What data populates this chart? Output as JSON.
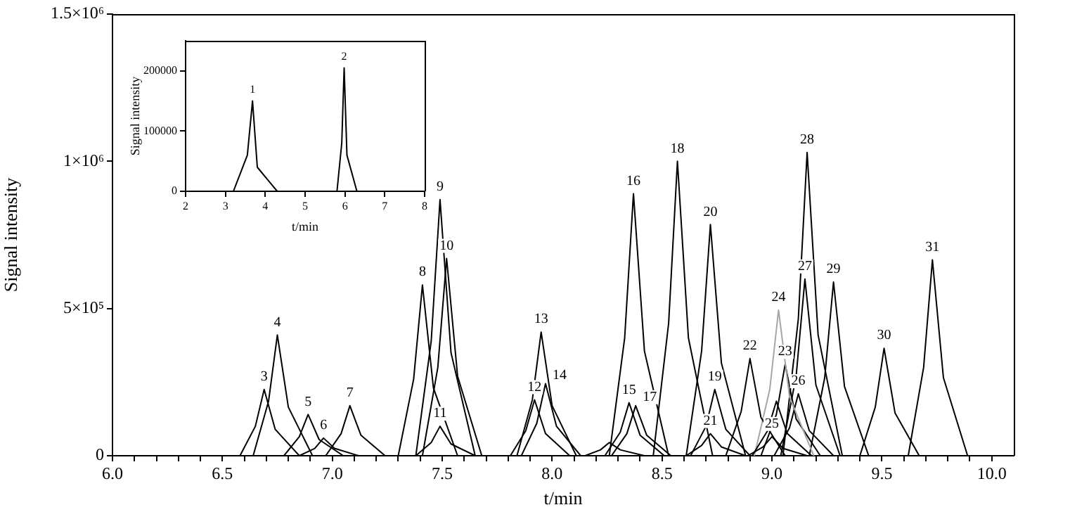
{
  "chart_data": [
    {
      "type": "line",
      "xlabel": "t/min",
      "ylabel": "Signal intensity",
      "xlim": [
        6.0,
        10.1
      ],
      "ylim": [
        0,
        1500000
      ],
      "xticks": [
        {
          "value": 6,
          "label": "6.0"
        },
        {
          "value": 6.1,
          "label": null
        },
        {
          "value": 6.2,
          "label": null
        },
        {
          "value": 6.3,
          "label": null
        },
        {
          "value": 6.4,
          "label": null
        },
        {
          "value": 6.5,
          "label": "6.5"
        },
        {
          "value": 6.6,
          "label": null
        },
        {
          "value": 6.7,
          "label": null
        },
        {
          "value": 6.8,
          "label": null
        },
        {
          "value": 6.9,
          "label": null
        },
        {
          "value": 7,
          "label": "7.0"
        },
        {
          "value": 7.1,
          "label": null
        },
        {
          "value": 7.2,
          "label": null
        },
        {
          "value": 7.3,
          "label": null
        },
        {
          "value": 7.4,
          "label": null
        },
        {
          "value": 7.5,
          "label": "7.5"
        },
        {
          "value": 7.6,
          "label": null
        },
        {
          "value": 7.7,
          "label": null
        },
        {
          "value": 7.8,
          "label": null
        },
        {
          "value": 7.9,
          "label": null
        },
        {
          "value": 8,
          "label": "8.0"
        },
        {
          "value": 8.1,
          "label": null
        },
        {
          "value": 8.2,
          "label": null
        },
        {
          "value": 8.3,
          "label": null
        },
        {
          "value": 8.4,
          "label": null
        },
        {
          "value": 8.5,
          "label": "8.5"
        },
        {
          "value": 8.6,
          "label": null
        },
        {
          "value": 8.7,
          "label": null
        },
        {
          "value": 8.8,
          "label": null
        },
        {
          "value": 8.9,
          "label": null
        },
        {
          "value": 9,
          "label": "9.0"
        },
        {
          "value": 9.1,
          "label": null
        },
        {
          "value": 9.2,
          "label": null
        },
        {
          "value": 9.3,
          "label": null
        },
        {
          "value": 9.4,
          "label": null
        },
        {
          "value": 9.5,
          "label": "9.5"
        },
        {
          "value": 9.6,
          "label": null
        },
        {
          "value": 9.7,
          "label": null
        },
        {
          "value": 9.8,
          "label": null
        },
        {
          "value": 9.9,
          "label": null
        },
        {
          "value": 10,
          "label": "10.0"
        }
      ],
      "yticks": [
        0,
        {
          "value": 500000,
          "label": "5×10⁵"
        },
        {
          "value": 1000000,
          "label": "1×10⁶"
        },
        {
          "value": 1500000,
          "label": "1.5×10⁶"
        }
      ],
      "grid": false,
      "legend": false,
      "marker": "none",
      "line_style": "solid",
      "series": [
        {
          "color": "#000000",
          "x": [
            6.58,
            6.65,
            6.69,
            6.74,
            6.85
          ],
          "values": [
            0,
            100000,
            225000,
            90000,
            0
          ]
        },
        {
          "color": "#000000",
          "x": [
            6.64,
            6.71,
            6.75,
            6.8,
            6.91
          ],
          "values": [
            0,
            185000,
            410000,
            165000,
            0
          ]
        },
        {
          "color": "#000000",
          "x": [
            6.78,
            6.85,
            6.89,
            6.94,
            7.05
          ],
          "values": [
            0,
            65000,
            140000,
            55000,
            0
          ]
        },
        {
          "color": "#000000",
          "x": [
            6.85,
            6.92,
            6.96,
            7.01,
            7.12
          ],
          "values": [
            0,
            25000,
            60000,
            25000,
            0
          ]
        },
        {
          "color": "#000000",
          "x": [
            6.97,
            7.04,
            7.08,
            7.13,
            7.24
          ],
          "values": [
            0,
            75000,
            170000,
            70000,
            0
          ]
        },
        {
          "color": "#000000",
          "x": [
            7.3,
            7.37,
            7.41,
            7.46,
            7.57
          ],
          "values": [
            0,
            260000,
            580000,
            230000,
            0
          ]
        },
        {
          "color": "#000000",
          "x": [
            7.38,
            7.45,
            7.49,
            7.54,
            7.65
          ],
          "values": [
            0,
            390000,
            870000,
            350000,
            0
          ]
        },
        {
          "color": "#000000",
          "x": [
            7.41,
            7.48,
            7.52,
            7.57,
            7.68
          ],
          "values": [
            0,
            300000,
            670000,
            270000,
            0
          ]
        },
        {
          "color": "#000000",
          "x": [
            7.38,
            7.45,
            7.49,
            7.54,
            7.65
          ],
          "values": [
            0,
            45000,
            100000,
            40000,
            0
          ]
        },
        {
          "color": "#000000",
          "x": [
            7.81,
            7.88,
            7.92,
            7.97,
            8.08
          ],
          "values": [
            0,
            85000,
            190000,
            75000,
            0
          ]
        },
        {
          "color": "#000000",
          "x": [
            7.84,
            7.91,
            7.95,
            8,
            8.11
          ],
          "values": [
            0,
            190000,
            420000,
            170000,
            0
          ]
        },
        {
          "color": "#000000",
          "x": [
            7.86,
            7.93,
            7.97,
            8.02,
            8.13
          ],
          "values": [
            0,
            110000,
            245000,
            100000,
            0
          ]
        },
        {
          "color": "#000000",
          "x": [
            8.15,
            8.22,
            8.26,
            8.31,
            8.42
          ],
          "values": [
            0,
            20000,
            45000,
            20000,
            0
          ]
        },
        {
          "color": "#000000",
          "x": [
            8.24,
            8.31,
            8.35,
            8.4,
            8.51
          ],
          "values": [
            0,
            80000,
            180000,
            70000,
            0
          ]
        },
        {
          "color": "#000000",
          "x": [
            8.26,
            8.33,
            8.37,
            8.42,
            8.53
          ],
          "values": [
            0,
            400000,
            890000,
            355000,
            0
          ]
        },
        {
          "color": "#000000",
          "x": [
            8.27,
            8.34,
            8.38,
            8.43,
            8.54
          ],
          "values": [
            0,
            75000,
            170000,
            70000,
            0
          ]
        },
        {
          "color": "#000000",
          "x": [
            8.46,
            8.53,
            8.57,
            8.62,
            8.73
          ],
          "values": [
            0,
            450000,
            1000000,
            400000,
            0
          ]
        },
        {
          "color": "#000000",
          "x": [
            8.61,
            8.68,
            8.72,
            8.77,
            8.88
          ],
          "values": [
            0,
            355000,
            785000,
            315000,
            0
          ]
        },
        {
          "color": "#000000",
          "x": [
            8.63,
            8.7,
            8.74,
            8.79,
            8.9
          ],
          "values": [
            0,
            100000,
            225000,
            90000,
            0
          ]
        },
        {
          "color": "#000000",
          "x": [
            8.61,
            8.68,
            8.72,
            8.77,
            8.88
          ],
          "values": [
            0,
            35000,
            75000,
            30000,
            0
          ]
        },
        {
          "color": "#000000",
          "x": [
            8.79,
            8.86,
            8.9,
            8.95,
            9.06
          ],
          "values": [
            0,
            150000,
            330000,
            130000,
            0
          ]
        },
        {
          "color": "#000000",
          "x": [
            8.89,
            8.96,
            9,
            9.05,
            9.16
          ],
          "values": [
            0,
            30000,
            65000,
            25000,
            0
          ]
        },
        {
          "color": "#000000",
          "x": [
            8.91,
            8.98,
            9.02,
            9.07,
            9.18
          ],
          "values": [
            0,
            85000,
            185000,
            75000,
            0
          ]
        },
        {
          "color": "#a6a6a6",
          "x": [
            8.92,
            8.99,
            9.03,
            9.08,
            9.19
          ],
          "values": [
            0,
            225000,
            495000,
            200000,
            0
          ]
        },
        {
          "color": "#000000",
          "x": [
            8.95,
            9.02,
            9.06,
            9.11,
            9.22
          ],
          "values": [
            0,
            140000,
            310000,
            125000,
            0
          ]
        },
        {
          "color": "#000000",
          "x": [
            9.01,
            9.08,
            9.12,
            9.17,
            9.28
          ],
          "values": [
            0,
            95000,
            210000,
            85000,
            0
          ]
        },
        {
          "color": "#000000",
          "x": [
            9.04,
            9.11,
            9.15,
            9.2,
            9.31
          ],
          "values": [
            0,
            270000,
            600000,
            240000,
            0
          ]
        },
        {
          "color": "#000000",
          "x": [
            9.05,
            9.12,
            9.16,
            9.21,
            9.32
          ],
          "values": [
            0,
            465000,
            1030000,
            410000,
            0
          ]
        },
        {
          "color": "#000000",
          "x": [
            9.17,
            9.24,
            9.28,
            9.33,
            9.44
          ],
          "values": [
            0,
            265000,
            590000,
            235000,
            0
          ]
        },
        {
          "color": "#000000",
          "x": [
            9.4,
            9.47,
            9.51,
            9.56,
            9.67
          ],
          "values": [
            0,
            165000,
            365000,
            145000,
            0
          ]
        },
        {
          "color": "#000000",
          "x": [
            9.62,
            9.69,
            9.73,
            9.78,
            9.89
          ],
          "values": [
            0,
            300000,
            665000,
            265000,
            0
          ]
        }
      ],
      "annotations": [
        {
          "text": "3",
          "x": 6.69,
          "y": 225000
        },
        {
          "text": "4",
          "x": 6.75,
          "y": 410000
        },
        {
          "text": "5",
          "x": 6.89,
          "y": 140000
        },
        {
          "text": "6",
          "x": 6.96,
          "y": 60000
        },
        {
          "text": "7",
          "x": 7.08,
          "y": 170000
        },
        {
          "text": "8",
          "x": 7.41,
          "y": 580000
        },
        {
          "text": "9",
          "x": 7.49,
          "y": 870000
        },
        {
          "text": "10",
          "x": 7.52,
          "y": 670000
        },
        {
          "text": "11",
          "x": 7.49,
          "y": 100000
        },
        {
          "text": "12",
          "x": 7.92,
          "y": 190000
        },
        {
          "text": "13",
          "x": 7.95,
          "y": 420000
        },
        {
          "text": "14",
          "x": 7.97,
          "y": 245000
        },
        {
          "text": "15",
          "x": 8.35,
          "y": 180000
        },
        {
          "text": "16",
          "x": 8.37,
          "y": 890000
        },
        {
          "text": "17",
          "x": 8.38,
          "y": 170000
        },
        {
          "text": "18",
          "x": 8.57,
          "y": 1000000
        },
        {
          "text": "19",
          "x": 8.74,
          "y": 225000
        },
        {
          "text": "20",
          "x": 8.72,
          "y": 785000
        },
        {
          "text": "21",
          "x": 8.72,
          "y": 75000
        },
        {
          "text": "22",
          "x": 8.9,
          "y": 330000
        },
        {
          "text": "23",
          "x": 9.06,
          "y": 310000
        },
        {
          "text": "24",
          "x": 9.03,
          "y": 495000
        },
        {
          "text": "25",
          "x": 9,
          "y": 65000
        },
        {
          "text": "26",
          "x": 9.12,
          "y": 210000
        },
        {
          "text": "27",
          "x": 9.15,
          "y": 600000
        },
        {
          "text": "28",
          "x": 9.16,
          "y": 1030000
        },
        {
          "text": "29",
          "x": 9.28,
          "y": 590000
        },
        {
          "text": "30",
          "x": 9.51,
          "y": 365000
        },
        {
          "text": "31",
          "x": 9.73,
          "y": 665000
        }
      ]
    },
    {
      "type": "line",
      "xlabel": "t/min",
      "ylabel": "Signal intensity",
      "xlim": [
        2,
        8
      ],
      "ylim": [
        0,
        250000
      ],
      "xticks": [
        2,
        3,
        4,
        5,
        6,
        7,
        8
      ],
      "yticks": [
        0,
        100000,
        200000
      ],
      "grid": false,
      "legend": false,
      "marker": "none",
      "line_style": "solid",
      "series": [
        {
          "color": "#000000",
          "x": [
            3.2,
            3.55,
            3.68,
            3.8,
            4.3
          ],
          "values": [
            0,
            60000,
            150000,
            40000,
            0
          ]
        },
        {
          "color": "#000000",
          "x": [
            5.8,
            5.92,
            5.98,
            6.05,
            6.3
          ],
          "values": [
            0,
            80000,
            205000,
            60000,
            0
          ]
        }
      ],
      "annotations": [
        {
          "text": "1",
          "x": 3.68,
          "y": 150000
        },
        {
          "text": "2",
          "x": 5.98,
          "y": 205000
        }
      ]
    }
  ]
}
